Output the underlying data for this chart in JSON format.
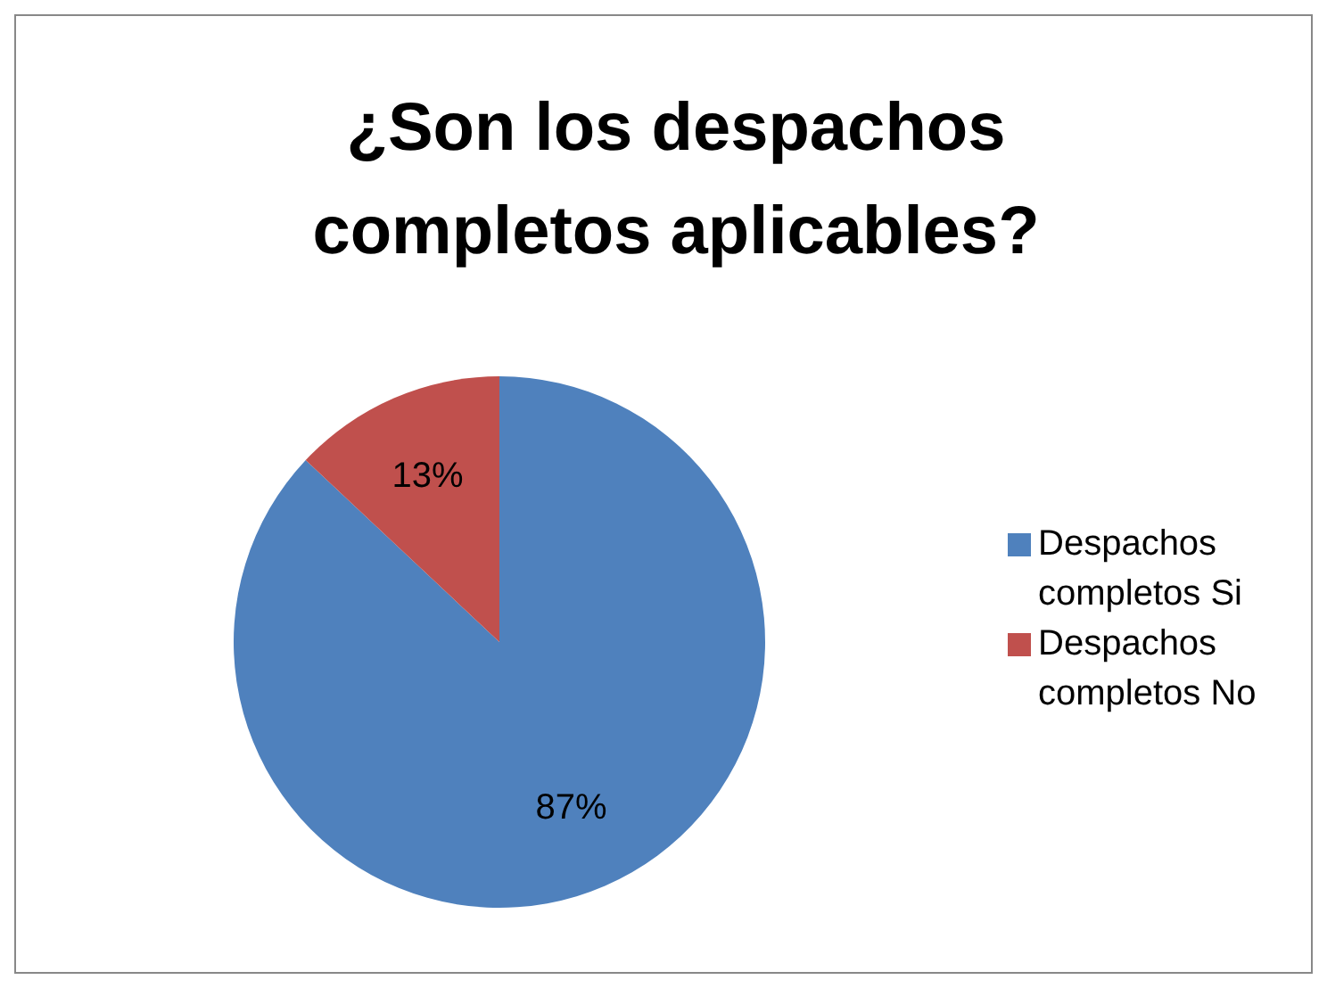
{
  "chart_data": {
    "type": "pie",
    "title": "¿Son los despachos completos aplicables?",
    "categories": [
      "Despachos completos Si",
      "Despachos completos No"
    ],
    "values": [
      87,
      13
    ],
    "colors": [
      "#4f81bd",
      "#c0504d"
    ],
    "value_labels": [
      "87%",
      "13%"
    ],
    "legend": "right"
  }
}
